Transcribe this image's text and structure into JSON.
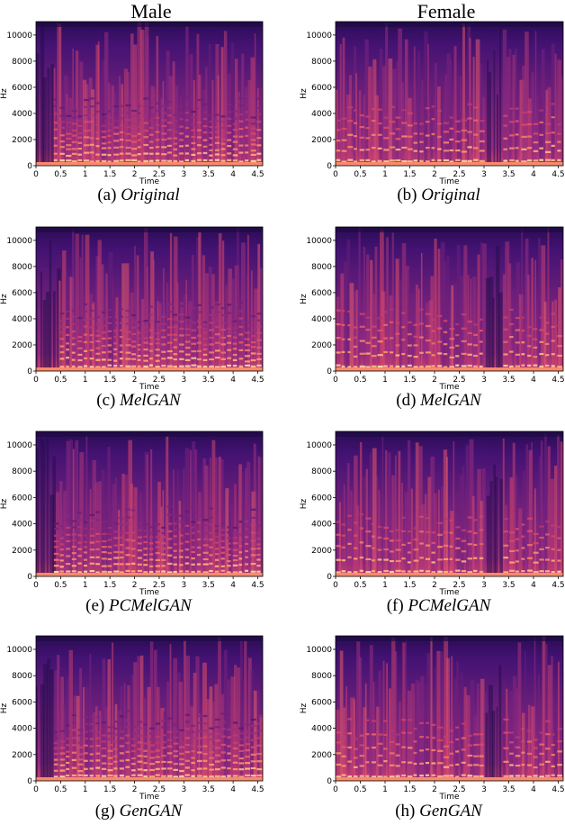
{
  "columns": [
    "Male",
    "Female"
  ],
  "colors": {
    "spectrogram_map": [
      "#0d0829",
      "#3b0f70",
      "#8c2981",
      "#de4968",
      "#fe9f6d",
      "#fcfdbf"
    ]
  },
  "chart_data": [
    {
      "type": "heatmap",
      "panel": "(a)",
      "caption_prefix": "(a)",
      "caption_model": "Original",
      "speaker": "Male",
      "xlabel": "Time",
      "ylabel": "Hz",
      "xlim": [
        0,
        4.6
      ],
      "ylim": [
        0,
        11025
      ],
      "xticks": [
        "0",
        "0.5",
        "1",
        "1.5",
        "2",
        "2.5",
        "3",
        "3.5",
        "4",
        "4.5"
      ],
      "yticks": [
        "0",
        "2000",
        "4000",
        "6000",
        "8000",
        "10000"
      ]
    },
    {
      "type": "heatmap",
      "panel": "(b)",
      "caption_prefix": "(b)",
      "caption_model": "Original",
      "speaker": "Female",
      "xlabel": "Time",
      "ylabel": "Hz",
      "xlim": [
        0,
        4.6
      ],
      "ylim": [
        0,
        11025
      ],
      "xticks": [
        "0",
        "0.5",
        "1",
        "1.5",
        "2",
        "2.5",
        "3",
        "3.5",
        "4",
        "4.5"
      ],
      "yticks": [
        "0",
        "2000",
        "4000",
        "6000",
        "8000",
        "10000"
      ]
    },
    {
      "type": "heatmap",
      "panel": "(c)",
      "caption_prefix": "(c)",
      "caption_model": "MelGAN",
      "speaker": "Male",
      "xlabel": "Time",
      "ylabel": "Hz",
      "xlim": [
        0,
        4.6
      ],
      "ylim": [
        0,
        11025
      ],
      "xticks": [
        "0",
        "0.5",
        "1",
        "1.5",
        "2",
        "2.5",
        "3",
        "3.5",
        "4",
        "4.5"
      ],
      "yticks": [
        "0",
        "2000",
        "4000",
        "6000",
        "8000",
        "10000"
      ]
    },
    {
      "type": "heatmap",
      "panel": "(d)",
      "caption_prefix": "(d)",
      "caption_model": "MelGAN",
      "speaker": "Female",
      "xlabel": "Time",
      "ylabel": "Hz",
      "xlim": [
        0,
        4.6
      ],
      "ylim": [
        0,
        11025
      ],
      "xticks": [
        "0",
        "0.5",
        "1",
        "1.5",
        "2",
        "2.5",
        "3",
        "3.5",
        "4",
        "4.5"
      ],
      "yticks": [
        "0",
        "2000",
        "4000",
        "6000",
        "8000",
        "10000"
      ]
    },
    {
      "type": "heatmap",
      "panel": "(e)",
      "caption_prefix": "(e)",
      "caption_model": "PCMelGAN",
      "speaker": "Male",
      "xlabel": "Time",
      "ylabel": "Hz",
      "xlim": [
        0,
        4.6
      ],
      "ylim": [
        0,
        11025
      ],
      "xticks": [
        "0",
        "0.5",
        "1",
        "1.5",
        "2",
        "2.5",
        "3",
        "3.5",
        "4",
        "4.5"
      ],
      "yticks": [
        "0",
        "2000",
        "4000",
        "6000",
        "8000",
        "10000"
      ]
    },
    {
      "type": "heatmap",
      "panel": "(f)",
      "caption_prefix": "(f)",
      "caption_model": "PCMelGAN",
      "speaker": "Female",
      "xlabel": "Time",
      "ylabel": "Hz",
      "xlim": [
        0,
        4.6
      ],
      "ylim": [
        0,
        11025
      ],
      "xticks": [
        "0",
        "0.5",
        "1",
        "1.5",
        "2",
        "2.5",
        "3",
        "3.5",
        "4",
        "4.5"
      ],
      "yticks": [
        "0",
        "2000",
        "4000",
        "6000",
        "8000",
        "10000"
      ]
    },
    {
      "type": "heatmap",
      "panel": "(g)",
      "caption_prefix": "(g)",
      "caption_model": "GenGAN",
      "speaker": "Male",
      "xlabel": "Time",
      "ylabel": "Hz",
      "xlim": [
        0,
        4.6
      ],
      "ylim": [
        0,
        11025
      ],
      "xticks": [
        "0",
        "0.5",
        "1",
        "1.5",
        "2",
        "2.5",
        "3",
        "3.5",
        "4",
        "4.5"
      ],
      "yticks": [
        "0",
        "2000",
        "4000",
        "6000",
        "8000",
        "10000"
      ]
    },
    {
      "type": "heatmap",
      "panel": "(h)",
      "caption_prefix": "(h)",
      "caption_model": "GenGAN",
      "speaker": "Female",
      "xlabel": "Time",
      "ylabel": "Hz",
      "xlim": [
        0,
        4.6
      ],
      "ylim": [
        0,
        11025
      ],
      "xticks": [
        "0",
        "0.5",
        "1",
        "1.5",
        "2",
        "2.5",
        "3",
        "3.5",
        "4",
        "4.5"
      ],
      "yticks": [
        "0",
        "2000",
        "4000",
        "6000",
        "8000",
        "10000"
      ]
    }
  ]
}
